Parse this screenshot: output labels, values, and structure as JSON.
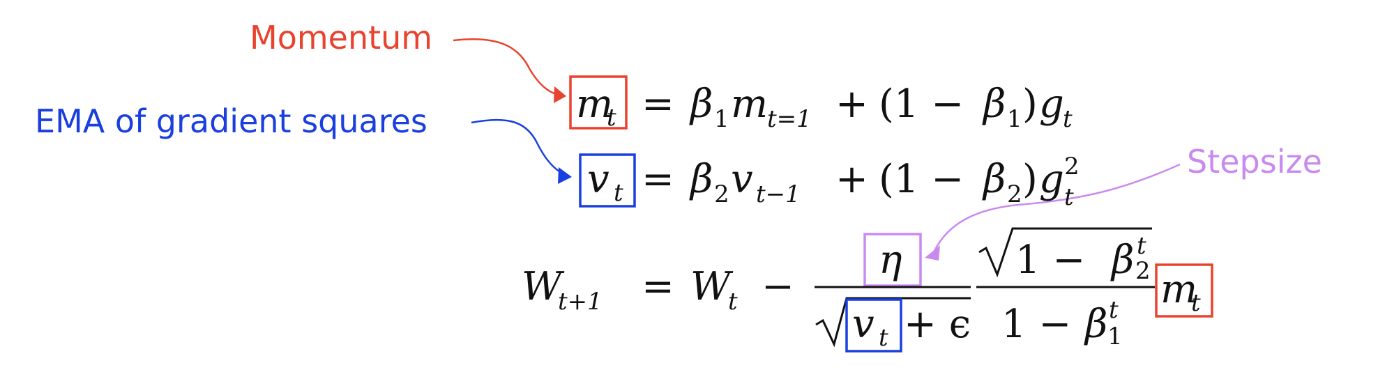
{
  "labels": {
    "momentum": "Momentum",
    "ema": "EMA of gradient squares",
    "stepsize": "Stepsize"
  },
  "colors": {
    "momentum": "#e8432e",
    "ema": "#1a3fe0",
    "stepsize": "#c98af0",
    "ink": "#111111"
  },
  "eq1": {
    "lhs_var": "m",
    "lhs_sub": "t",
    "eq": "=",
    "beta": "β",
    "beta_sub": "1",
    "m": "m",
    "m_sub": "t=1",
    "plus": "+",
    "lp": "(1 −",
    "beta2": "β",
    "beta2_sub": "1",
    "rp": ")",
    "g": "g",
    "g_sub": "t"
  },
  "eq2": {
    "lhs_var": "v",
    "lhs_sub": "t",
    "eq": "=",
    "beta": "β",
    "beta_sub": "2",
    "v": "v",
    "v_sub": "t−1",
    "plus": "+",
    "lp": "(1 −",
    "beta2": "β",
    "beta2_sub": "2",
    "rp": ")",
    "g": "g",
    "g_sup": "2",
    "g_sub": "t"
  },
  "eq3": {
    "lhs_var": "W",
    "lhs_sub": "t+1",
    "eq": "=",
    "w": "W",
    "w_sub": "t",
    "minus": "−",
    "eta": "η",
    "v": "v",
    "v_sub": "t",
    "plus_eps": "+ ϵ",
    "num2": "1 −",
    "beta_num": "β",
    "beta_num_sub": "2",
    "beta_num_sup": "t",
    "den2": "1 −",
    "beta_den": "β",
    "beta_den_sub": "1",
    "beta_den_sup": "t",
    "m": "m",
    "m_sub": "t"
  }
}
